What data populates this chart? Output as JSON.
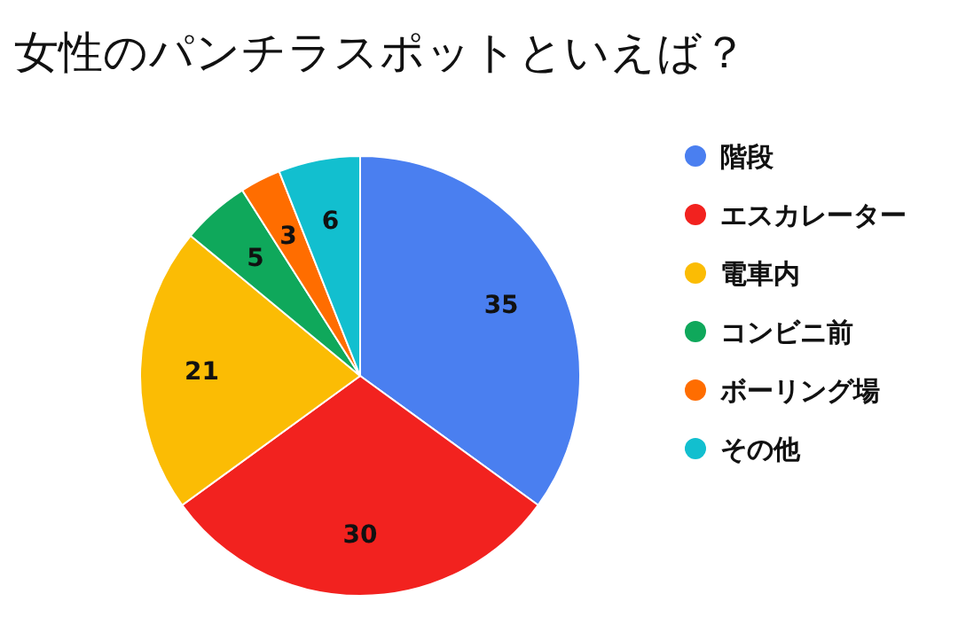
{
  "chart_data": {
    "type": "pie",
    "title": "女性のパンチラスポットといえば？",
    "categories": [
      "階段",
      "エスカレーター",
      "電車内",
      "コンビニ前",
      "ボーリング場",
      "その他"
    ],
    "values": [
      35,
      30,
      21,
      5,
      3,
      6
    ],
    "colors": [
      "#4a7ff0",
      "#f2221f",
      "#fbbc04",
      "#0fa85b",
      "#ff6d00",
      "#12bfcf"
    ],
    "data_labels": true,
    "legend": "right"
  }
}
